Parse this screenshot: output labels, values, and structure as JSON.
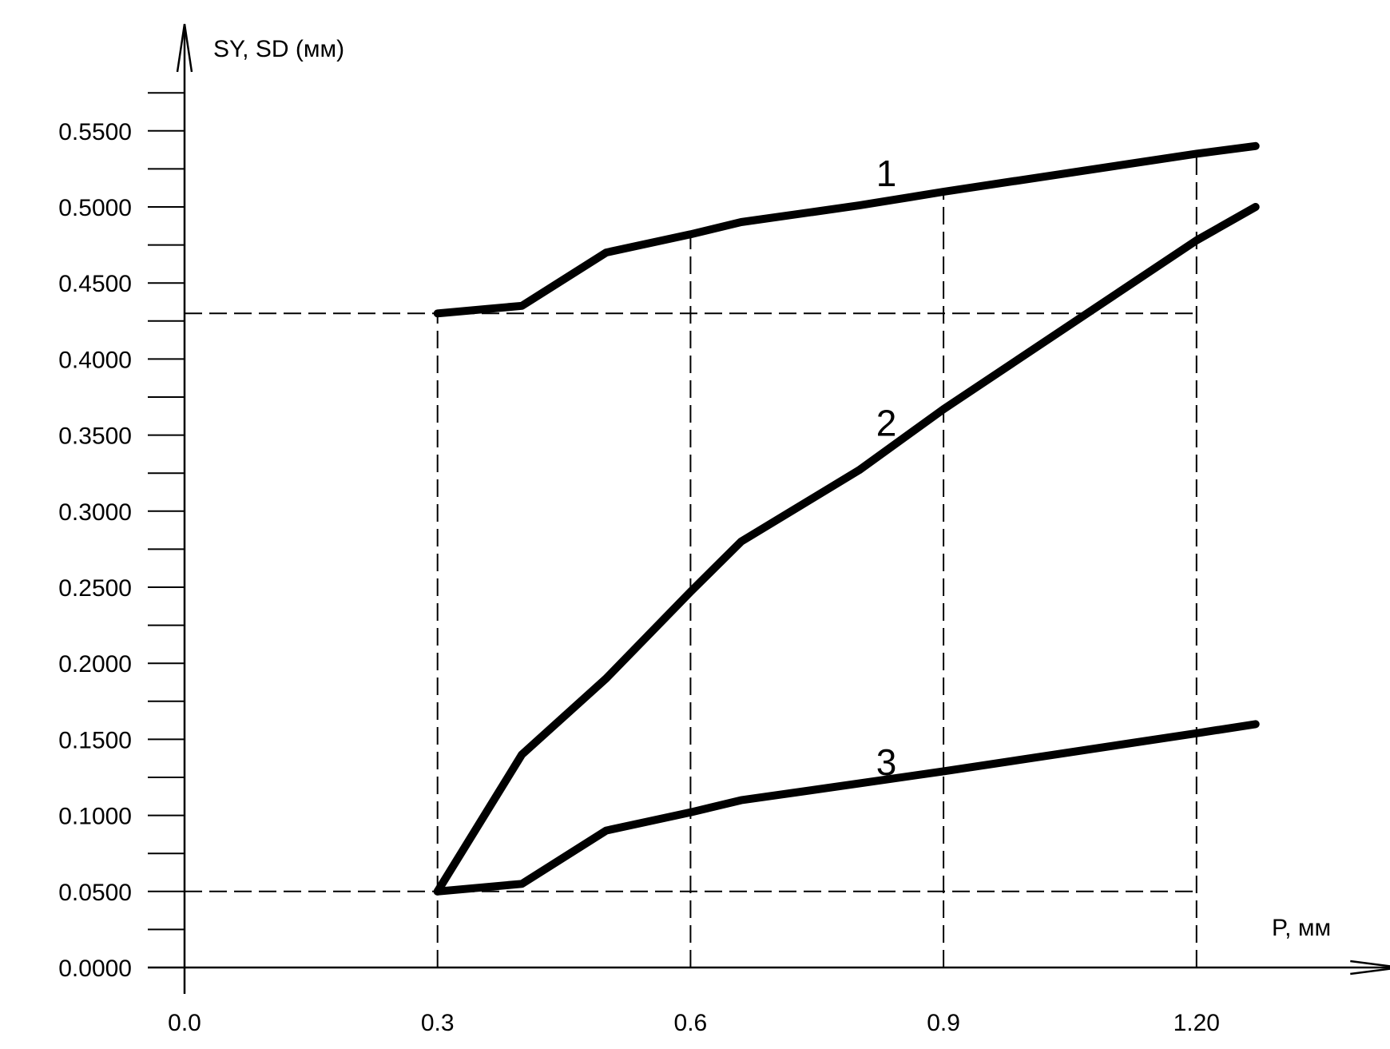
{
  "chart_data": {
    "type": "line",
    "xlabel": "P, мм",
    "ylabel": "SY, SD (мм)",
    "x_ticks": [
      0.0,
      0.3,
      0.6,
      0.9,
      1.2
    ],
    "x_tick_labels": [
      "0.0",
      "0.3",
      "0.6",
      "0.9",
      "1.20"
    ],
    "y_ticks": [
      0.0,
      0.05,
      0.1,
      0.15,
      0.2,
      0.25,
      0.3,
      0.35,
      0.4,
      0.45,
      0.5,
      0.55
    ],
    "y_tick_labels": [
      "0.0000",
      "0.0500",
      "0.1000",
      "0.1500",
      "0.2000",
      "0.2500",
      "0.3000",
      "0.3500",
      "0.4000",
      "0.4500",
      "0.5000",
      "0.5500"
    ],
    "y_minor_step": 0.025,
    "xlim": [
      0.0,
      1.28
    ],
    "ylim": [
      0.0,
      0.575
    ],
    "grid": false,
    "series": [
      {
        "label": "1",
        "x": [
          0.3,
          0.4,
          0.5,
          0.6,
          0.66,
          0.8,
          0.9,
          1.2,
          1.27
        ],
        "y": [
          0.43,
          0.435,
          0.47,
          0.482,
          0.49,
          0.501,
          0.51,
          0.535,
          0.54
        ]
      },
      {
        "label": "2",
        "x": [
          0.3,
          0.4,
          0.5,
          0.6,
          0.66,
          0.8,
          0.9,
          1.2,
          1.27
        ],
        "y": [
          0.05,
          0.14,
          0.19,
          0.247,
          0.28,
          0.327,
          0.367,
          0.478,
          0.5
        ]
      },
      {
        "label": "3",
        "x": [
          0.3,
          0.4,
          0.5,
          0.6,
          0.66,
          0.8,
          0.9,
          1.2,
          1.27
        ],
        "y": [
          0.05,
          0.055,
          0.09,
          0.102,
          0.11,
          0.121,
          0.129,
          0.154,
          0.16
        ]
      }
    ],
    "reference_lines": {
      "horizontal": [
        {
          "y": 0.43,
          "x_from": 0.0,
          "x_to": 1.2
        },
        {
          "y": 0.05,
          "x_from": 0.0,
          "x_to": 1.2
        }
      ],
      "vertical": [
        {
          "x": 0.3,
          "y_from": 0.0,
          "y_to": 0.43
        },
        {
          "x": 0.6,
          "y_from": 0.0,
          "y_to": 0.482
        },
        {
          "x": 0.9,
          "y_from": 0.0,
          "y_to": 0.51
        },
        {
          "x": 1.2,
          "y_from": 0.0,
          "y_to": 0.535
        }
      ]
    },
    "curve_label_anchors": [
      {
        "label": "1",
        "x": 0.8,
        "y": 0.522
      },
      {
        "label": "2",
        "x": 0.8,
        "y": 0.358
      },
      {
        "label": "3",
        "x": 0.8,
        "y": 0.135
      }
    ]
  }
}
